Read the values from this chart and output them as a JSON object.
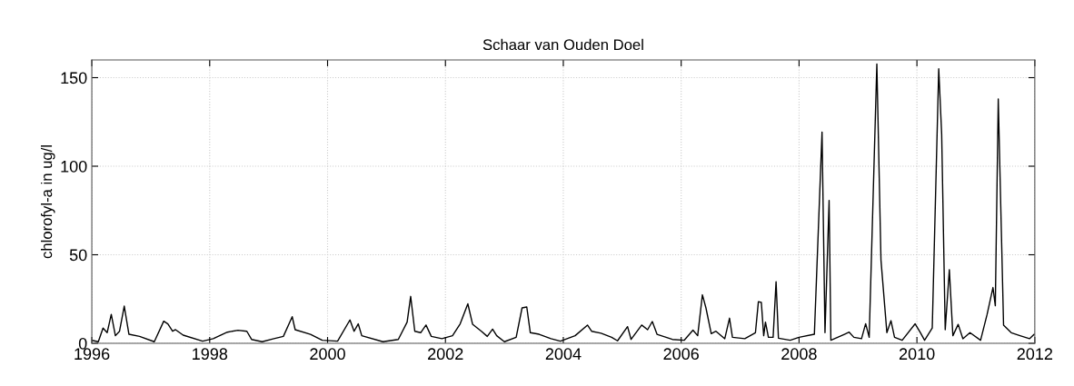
{
  "chart_data": {
    "type": "line",
    "title": "Schaar van Ouden Doel",
    "ylabel": "chlorofyl-a in ug/l",
    "xlim": [
      1996,
      2012
    ],
    "xticks": [
      1996,
      1998,
      2000,
      2002,
      2004,
      2006,
      2008,
      2010,
      2012
    ],
    "ylim": [
      0,
      160
    ],
    "yticks": [
      0,
      50,
      100,
      150
    ],
    "grid": true,
    "line_style": "solid",
    "marker": "none",
    "series": [
      {
        "color": "#000000",
        "x": [
          1996.0,
          1996.11,
          1996.19,
          1996.26,
          1996.33,
          1996.4,
          1996.47,
          1996.55,
          1996.63,
          1996.81,
          1997.06,
          1997.22,
          1997.29,
          1997.37,
          1997.42,
          1997.55,
          1997.88,
          1998.06,
          1998.3,
          1998.48,
          1998.63,
          1998.71,
          1998.89,
          1999.09,
          1999.25,
          1999.4,
          1999.45,
          1999.71,
          1999.91,
          2000.17,
          2000.38,
          2000.45,
          2000.52,
          2000.58,
          2000.94,
          2001.2,
          2001.35,
          2001.41,
          2001.48,
          2001.58,
          2001.67,
          2001.76,
          2001.94,
          2002.12,
          2002.25,
          2002.38,
          2002.46,
          2002.61,
          2002.71,
          2002.8,
          2002.87,
          2003.0,
          2003.2,
          2003.3,
          2003.38,
          2003.44,
          2003.59,
          2003.79,
          2003.95,
          2004.2,
          2004.41,
          2004.48,
          2004.64,
          2004.82,
          2004.92,
          2005.09,
          2005.15,
          2005.33,
          2005.43,
          2005.51,
          2005.59,
          2005.85,
          2006.05,
          2006.2,
          2006.28,
          2006.36,
          2006.42,
          2006.51,
          2006.59,
          2006.74,
          2006.82,
          2006.87,
          2007.08,
          2007.26,
          2007.31,
          2007.36,
          2007.4,
          2007.43,
          2007.48,
          2007.56,
          2007.61,
          2007.65,
          2007.85,
          2008.0,
          2008.26,
          2008.39,
          2008.44,
          2008.51,
          2008.54,
          2008.77,
          2008.85,
          2008.93,
          2009.06,
          2009.13,
          2009.19,
          2009.32,
          2009.39,
          2009.49,
          2009.56,
          2009.62,
          2009.75,
          2009.97,
          2010.06,
          2010.13,
          2010.26,
          2010.37,
          2010.42,
          2010.48,
          2010.55,
          2010.61,
          2010.7,
          2010.78,
          2010.9,
          2011.08,
          2011.19,
          2011.29,
          2011.33,
          2011.38,
          2011.47,
          2011.6,
          2011.75,
          2011.91,
          2011.99
        ],
        "values": [
          1.7,
          0.9,
          8.6,
          6,
          16.3,
          4.3,
          6.8,
          21,
          5.1,
          3.9,
          0.9,
          12.5,
          11,
          6.8,
          7.7,
          4.6,
          1.2,
          2.6,
          6.3,
          7.4,
          6.8,
          2.2,
          0.9,
          2.6,
          3.9,
          15,
          7.7,
          5.1,
          1.7,
          1.2,
          13.2,
          6.8,
          11,
          4.3,
          0.9,
          2.2,
          12,
          26.5,
          6.8,
          6,
          10.3,
          3.9,
          2.6,
          4.3,
          11,
          22.3,
          10.8,
          6.8,
          3.9,
          8,
          4.3,
          0.9,
          3.4,
          20,
          20.5,
          6,
          5.1,
          2.6,
          1.2,
          4.3,
          10.3,
          6.8,
          5.7,
          3.4,
          1.4,
          9.4,
          2.2,
          10.3,
          7.7,
          12.3,
          5.1,
          2.2,
          1.7,
          7.4,
          4.3,
          27.4,
          20,
          5.5,
          6.8,
          2.6,
          14.2,
          3.4,
          2.6,
          6,
          23.5,
          23.1,
          4.3,
          12,
          3.4,
          3.4,
          34.8,
          2.9,
          1.7,
          3.4,
          5.1,
          119.3,
          6,
          80.7,
          1.7,
          5.1,
          6.3,
          3.4,
          2.6,
          11.1,
          3.4,
          157.7,
          47,
          6,
          12.8,
          3.4,
          1.7,
          11,
          6,
          1.7,
          8.6,
          155,
          118,
          7.7,
          41.6,
          4.3,
          10.7,
          2.6,
          6,
          1.7,
          16.2,
          31.5,
          21.2,
          138,
          10.3,
          6,
          4.3,
          2.6,
          5.1
        ]
      }
    ]
  }
}
